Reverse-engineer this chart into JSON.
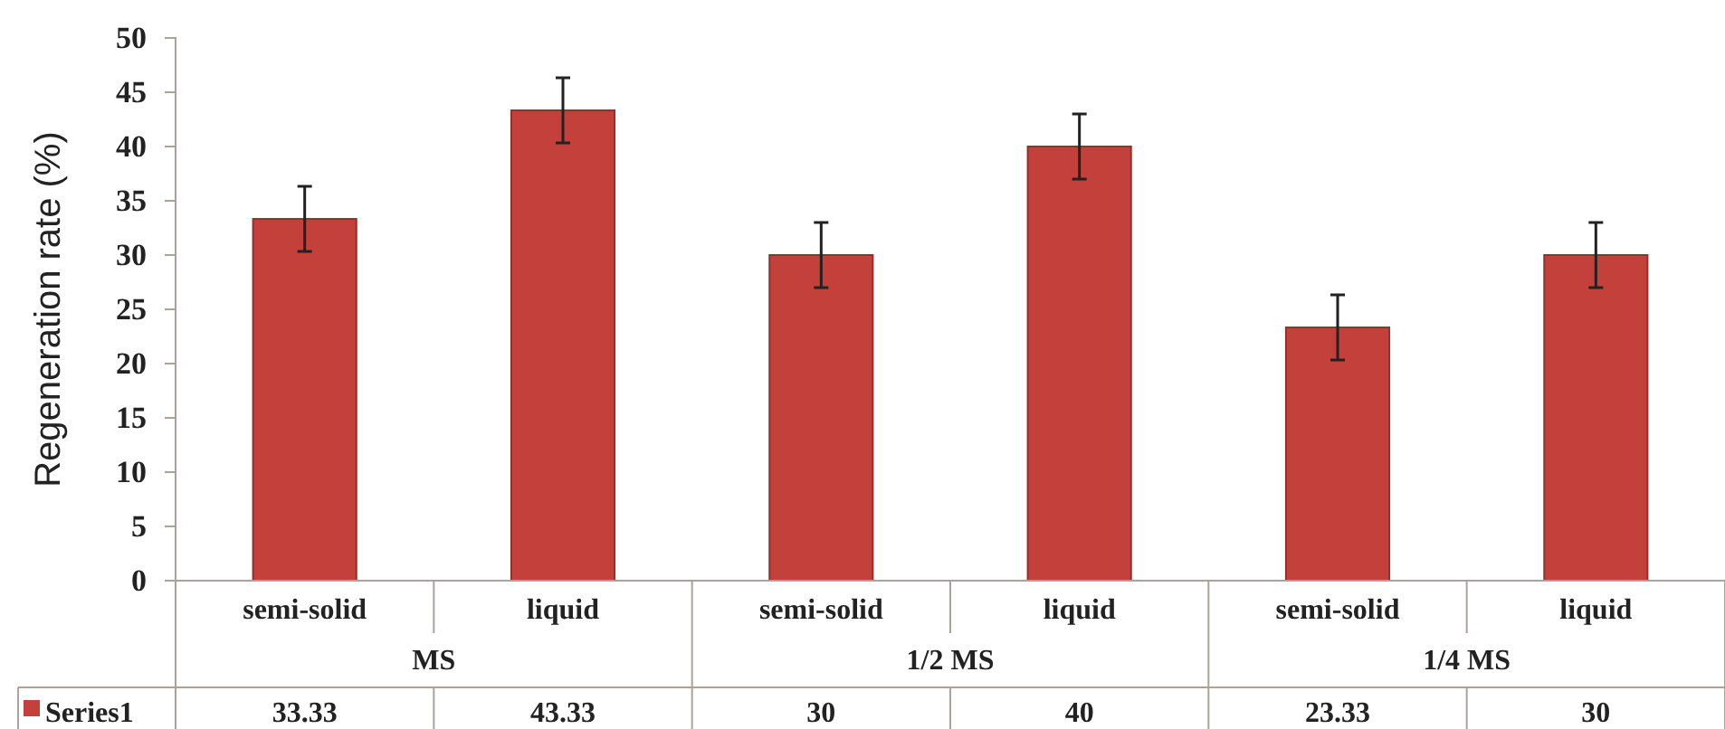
{
  "chart_data": {
    "type": "bar",
    "ylabel": "Regeneration rate (%)",
    "categories": [
      "semi-solid",
      "liquid",
      "semi-solid",
      "liquid",
      "semi-solid",
      "liquid"
    ],
    "annotations": [
      "MS",
      "1/2 MS",
      "1/4 MS"
    ],
    "series": [
      {
        "name": "Series1",
        "color": "#c4403b",
        "values": [
          33.33,
          43.33,
          30,
          40,
          23.33,
          30
        ],
        "errors": [
          3,
          3,
          3,
          3,
          3,
          3
        ]
      }
    ],
    "ylim": [
      0,
      50
    ],
    "yticks": [
      0,
      5,
      10,
      15,
      20,
      25,
      30,
      35,
      40,
      45,
      50
    ],
    "grid": false,
    "legend": "bottom left",
    "data_labels": true
  }
}
